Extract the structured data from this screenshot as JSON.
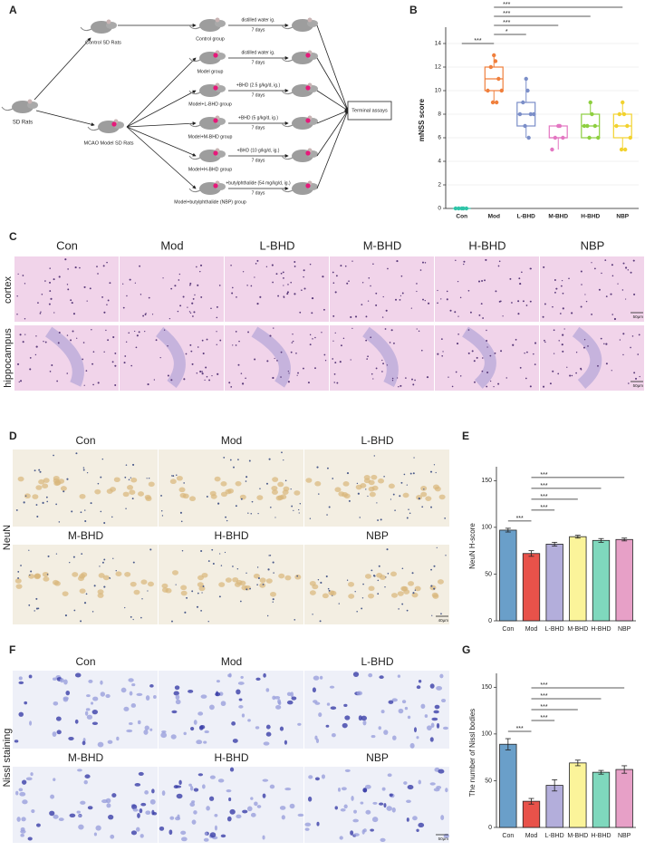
{
  "panel_labels": [
    "A",
    "B",
    "C",
    "D",
    "E",
    "F",
    "G"
  ],
  "diagram": {
    "start": "SD Rats",
    "control": "Control SD Rats",
    "model": "MCAO Model SD Rats",
    "end": "Terminal assays",
    "groups": [
      {
        "name": "Control group",
        "treatment": "distilled water ig.",
        "duration": "7 days"
      },
      {
        "name": "Model group",
        "treatment": "distilled water ig.",
        "duration": "7 days"
      },
      {
        "name": "Model+L-BHD group",
        "treatment": "+BHD (2.5 g/kg/d, ig.)",
        "duration": "7 days"
      },
      {
        "name": "Model+M-BHD group",
        "treatment": "+BHD (5 g/kg/d, ig.)",
        "duration": "7 days"
      },
      {
        "name": "Model+H-BHD group",
        "treatment": "+BHD (10 g/kg/d, ig.)",
        "duration": "7 days"
      },
      {
        "name": "Model+butylphthalide (NBP) group",
        "treatment": "+butylphthalide (54 mg/kg/d, ig.)",
        "duration": "7 days"
      }
    ]
  },
  "micrographs": {
    "C": {
      "columns": [
        "Con",
        "Mod",
        "L-BHD",
        "M-BHD",
        "H-BHD",
        "NBP"
      ],
      "rows": [
        "cortex",
        "hippocampus"
      ],
      "scale_bar": "50μm"
    },
    "D": {
      "stain": "NeuN",
      "labels": [
        "Con",
        "Mod",
        "L-BHD",
        "M-BHD",
        "H-BHD",
        "NBP"
      ],
      "scale_bar": "40μm"
    },
    "F": {
      "stain": "Nissl staining",
      "labels": [
        "Con",
        "Mod",
        "L-BHD",
        "M-BHD",
        "H-BHD",
        "NBP"
      ],
      "scale_bar": "50μm"
    }
  },
  "chart_data": [
    {
      "type": "box",
      "ylabel": "mNSS score",
      "categories": [
        "Con",
        "Mod",
        "L-BHD",
        "M-BHD",
        "H-BHD",
        "NBP"
      ],
      "colors": [
        "#2fc4a8",
        "#f07f3c",
        "#7b8ec8",
        "#e377c2",
        "#8dcf3f",
        "#f2d22e"
      ],
      "ylim": [
        0,
        15
      ],
      "yticks": [
        0,
        2,
        4,
        6,
        8,
        10,
        12,
        14
      ],
      "grid": true,
      "boxes": [
        {
          "min": 0,
          "q1": 0,
          "median": 0,
          "q3": 0,
          "max": 0,
          "points": [
            0,
            0,
            0,
            0,
            0
          ]
        },
        {
          "min": 9,
          "q1": 10,
          "median": 11,
          "q3": 12,
          "max": 13,
          "points": [
            13,
            12.5,
            12,
            11,
            10,
            10,
            9,
            9
          ]
        },
        {
          "min": 6,
          "q1": 7,
          "median": 8,
          "q3": 9,
          "max": 11,
          "points": [
            11,
            10,
            9,
            8,
            8,
            8,
            7,
            6
          ]
        },
        {
          "min": 5,
          "q1": 6,
          "median": 6,
          "q3": 7,
          "max": 7,
          "points": [
            7,
            7,
            6,
            6,
            5
          ]
        },
        {
          "min": 6,
          "q1": 6,
          "median": 7,
          "q3": 8,
          "max": 9,
          "points": [
            9,
            8,
            7,
            7,
            7,
            6,
            6
          ]
        },
        {
          "min": 5,
          "q1": 6,
          "median": 7,
          "q3": 8,
          "max": 9,
          "points": [
            9,
            8,
            8,
            7,
            7,
            6,
            5,
            5
          ]
        }
      ],
      "significance": [
        {
          "pair": [
            0,
            1
          ],
          "label": "***"
        },
        {
          "pair": [
            1,
            2
          ],
          "label": "*"
        },
        {
          "pair": [
            1,
            3
          ],
          "label": "***"
        },
        {
          "pair": [
            1,
            4
          ],
          "label": "***"
        },
        {
          "pair": [
            1,
            5
          ],
          "label": "***"
        }
      ]
    },
    {
      "type": "bar",
      "ylabel": "NeuN  H-score",
      "categories": [
        "Con",
        "Mod",
        "L-BHD",
        "M-BHD",
        "H-BHD",
        "NBP"
      ],
      "colors": [
        "#6a9fc9",
        "#e8524a",
        "#b3aedb",
        "#fbf49a",
        "#7fd8bd",
        "#e7a0c7"
      ],
      "values": [
        97,
        72,
        82,
        90,
        86,
        87
      ],
      "errors": [
        2,
        3,
        2,
        1.5,
        2,
        1.5
      ],
      "ylim": [
        0,
        160
      ],
      "yticks": [
        0,
        50,
        100,
        150
      ],
      "grid": false,
      "significance": [
        {
          "pair": [
            0,
            1
          ],
          "label": "***"
        },
        {
          "pair": [
            1,
            2
          ],
          "label": "***"
        },
        {
          "pair": [
            1,
            3
          ],
          "label": "***"
        },
        {
          "pair": [
            1,
            4
          ],
          "label": "***"
        },
        {
          "pair": [
            1,
            5
          ],
          "label": "***"
        }
      ]
    },
    {
      "type": "bar",
      "ylabel": "The number of Nissl bodies",
      "categories": [
        "Con",
        "Mod",
        "L-BHD",
        "M-BHD",
        "H-BHD",
        "NBP"
      ],
      "colors": [
        "#6a9fc9",
        "#e8524a",
        "#b3aedb",
        "#fbf49a",
        "#7fd8bd",
        "#e7a0c7"
      ],
      "values": [
        89,
        28,
        45,
        69,
        59,
        62
      ],
      "errors": [
        6,
        3,
        6,
        3,
        2,
        4
      ],
      "ylim": [
        0,
        160
      ],
      "yticks": [
        0,
        50,
        100,
        150
      ],
      "grid": false,
      "significance": [
        {
          "pair": [
            0,
            1
          ],
          "label": "***"
        },
        {
          "pair": [
            1,
            2
          ],
          "label": "***"
        },
        {
          "pair": [
            1,
            3
          ],
          "label": "***"
        },
        {
          "pair": [
            1,
            4
          ],
          "label": "***"
        },
        {
          "pair": [
            1,
            5
          ],
          "label": "***"
        }
      ]
    }
  ]
}
